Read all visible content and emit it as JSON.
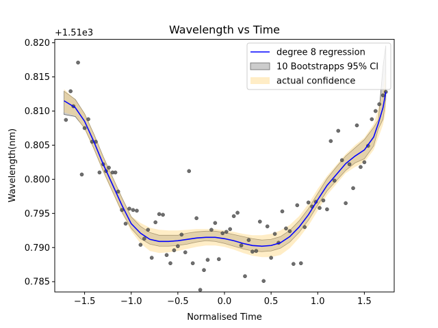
{
  "chart_data": {
    "type": "scatter",
    "title": "Wavelength vs Time",
    "xlabel": "Normalised Time",
    "ylabel": "Wavelength(nm)",
    "offset_text": "+1.51e3",
    "xlim": [
      -1.82,
      1.82
    ],
    "ylim": [
      0.7835,
      0.8205
    ],
    "x_ticks": [
      -1.5,
      -1.0,
      -0.5,
      0.0,
      0.5,
      1.0,
      1.5
    ],
    "x_tick_labels": [
      "−1.5",
      "−1.0",
      "−0.5",
      "0.0",
      "0.5",
      "1.0",
      "1.5"
    ],
    "y_ticks": [
      0.785,
      0.79,
      0.795,
      0.8,
      0.805,
      0.81,
      0.815,
      0.82
    ],
    "y_tick_labels": [
      "0.785",
      "0.790",
      "0.795",
      "0.800",
      "0.805",
      "0.810",
      "0.815",
      "0.820"
    ],
    "grid": false,
    "legend_position": "top-right",
    "colors": {
      "points": "#555555",
      "regression": "#0000ff",
      "bootstrap_fill": "#999999",
      "bootstrap_edge": "#666666",
      "confidence_fill": "#ffd780"
    },
    "series": [
      {
        "name": "degree 8 regression",
        "kind": "line",
        "x": [
          -1.72,
          -1.6,
          -1.5,
          -1.4,
          -1.3,
          -1.2,
          -1.1,
          -1.0,
          -0.9,
          -0.8,
          -0.7,
          -0.6,
          -0.5,
          -0.4,
          -0.3,
          -0.2,
          -0.1,
          0.0,
          0.1,
          0.2,
          0.3,
          0.4,
          0.5,
          0.6,
          0.7,
          0.8,
          0.9,
          1.0,
          1.1,
          1.2,
          1.3,
          1.4,
          1.5,
          1.6,
          1.65,
          1.7,
          1.73
        ],
        "y": [
          0.8115,
          0.8105,
          0.8085,
          0.8055,
          0.8022,
          0.7992,
          0.7962,
          0.7935,
          0.7921,
          0.7912,
          0.7909,
          0.7909,
          0.791,
          0.7912,
          0.7914,
          0.7915,
          0.7915,
          0.7913,
          0.791,
          0.7906,
          0.7903,
          0.7902,
          0.7903,
          0.7907,
          0.7916,
          0.793,
          0.7948,
          0.797,
          0.7991,
          0.8007,
          0.8023,
          0.8034,
          0.8043,
          0.8062,
          0.8082,
          0.8105,
          0.8128
        ]
      },
      {
        "name": "10 Bootstrapps 95% CI",
        "kind": "band",
        "x": [
          -1.72,
          -1.6,
          -1.5,
          -1.4,
          -1.3,
          -1.2,
          -1.1,
          -1.0,
          -0.9,
          -0.8,
          -0.7,
          -0.6,
          -0.5,
          -0.4,
          -0.3,
          -0.2,
          -0.1,
          0.0,
          0.1,
          0.2,
          0.3,
          0.4,
          0.5,
          0.6,
          0.7,
          0.8,
          0.9,
          1.0,
          1.1,
          1.2,
          1.3,
          1.4,
          1.5,
          1.6,
          1.65,
          1.7,
          1.73
        ],
        "lower": [
          0.8095,
          0.8092,
          0.8075,
          0.8045,
          0.8012,
          0.7982,
          0.7952,
          0.7928,
          0.7913,
          0.7905,
          0.7902,
          0.7902,
          0.7903,
          0.7905,
          0.7908,
          0.791,
          0.7909,
          0.7906,
          0.7902,
          0.7898,
          0.7895,
          0.7894,
          0.7895,
          0.7899,
          0.7908,
          0.7922,
          0.794,
          0.7962,
          0.7983,
          0.7998,
          0.8013,
          0.8024,
          0.803,
          0.8049,
          0.8074,
          0.8088,
          0.8117
        ],
        "upper": [
          0.8129,
          0.8117,
          0.8096,
          0.8066,
          0.8033,
          0.8003,
          0.7973,
          0.7945,
          0.7931,
          0.7922,
          0.7918,
          0.7918,
          0.7918,
          0.7921,
          0.7923,
          0.7924,
          0.7924,
          0.7922,
          0.7919,
          0.7916,
          0.7913,
          0.7911,
          0.7912,
          0.7916,
          0.7925,
          0.7939,
          0.7957,
          0.7979,
          0.8001,
          0.8018,
          0.8034,
          0.8046,
          0.8058,
          0.8076,
          0.8087,
          0.8165,
          0.8196
        ]
      },
      {
        "name": "actual confidence",
        "kind": "band",
        "x": [
          -1.72,
          -1.6,
          -1.5,
          -1.4,
          -1.3,
          -1.2,
          -1.1,
          -1.0,
          -0.9,
          -0.8,
          -0.7,
          -0.6,
          -0.5,
          -0.4,
          -0.3,
          -0.2,
          -0.1,
          0.0,
          0.1,
          0.2,
          0.3,
          0.4,
          0.5,
          0.6,
          0.7,
          0.8,
          0.9,
          1.0,
          1.1,
          1.2,
          1.3,
          1.4,
          1.5,
          1.6,
          1.65,
          1.7,
          1.73
        ],
        "lower": [
          0.8098,
          0.8093,
          0.8073,
          0.8043,
          0.801,
          0.798,
          0.795,
          0.7924,
          0.7906,
          0.7895,
          0.7892,
          0.7893,
          0.7895,
          0.7898,
          0.7901,
          0.7903,
          0.7903,
          0.7901,
          0.7897,
          0.7892,
          0.7888,
          0.7886,
          0.7886,
          0.7889,
          0.7899,
          0.7914,
          0.7932,
          0.7954,
          0.7977,
          0.7993,
          0.8009,
          0.8018,
          0.8025,
          0.8043,
          0.8061,
          0.808,
          0.81
        ],
        "upper": [
          0.8132,
          0.8117,
          0.8097,
          0.8067,
          0.8034,
          0.8004,
          0.7974,
          0.7946,
          0.7936,
          0.7929,
          0.7926,
          0.7925,
          0.7925,
          0.7926,
          0.7927,
          0.7927,
          0.7927,
          0.7925,
          0.7923,
          0.792,
          0.7918,
          0.7918,
          0.792,
          0.7925,
          0.7933,
          0.7946,
          0.7964,
          0.7986,
          0.8005,
          0.8021,
          0.8037,
          0.805,
          0.8061,
          0.8081,
          0.8103,
          0.813,
          0.8156
        ]
      },
      {
        "name": "data",
        "kind": "scatter",
        "x": [
          -1.7,
          -1.65,
          -1.62,
          -1.57,
          -1.53,
          -1.5,
          -1.46,
          -1.42,
          -1.38,
          -1.34,
          -1.3,
          -1.27,
          -1.24,
          -1.2,
          -1.17,
          -1.14,
          -1.1,
          -1.06,
          -1.02,
          -0.98,
          -0.94,
          -0.9,
          -0.86,
          -0.82,
          -0.78,
          -0.74,
          -0.7,
          -0.66,
          -0.62,
          -0.58,
          -0.54,
          -0.5,
          -0.46,
          -0.42,
          -0.38,
          -0.34,
          -0.3,
          -0.26,
          -0.22,
          -0.18,
          -0.14,
          -0.1,
          -0.06,
          -0.02,
          0.02,
          0.06,
          0.1,
          0.14,
          0.18,
          0.22,
          0.26,
          0.3,
          0.34,
          0.38,
          0.42,
          0.46,
          0.5,
          0.54,
          0.58,
          0.62,
          0.66,
          0.7,
          0.74,
          0.78,
          0.82,
          0.86,
          0.9,
          0.94,
          0.98,
          1.02,
          1.06,
          1.1,
          1.14,
          1.18,
          1.22,
          1.26,
          1.3,
          1.34,
          1.38,
          1.42,
          1.46,
          1.5,
          1.54,
          1.58,
          1.62,
          1.66,
          1.7,
          1.73
        ],
        "y": [
          0.8087,
          0.8129,
          0.8107,
          0.8171,
          0.8007,
          0.8075,
          0.8088,
          0.8055,
          0.8055,
          0.801,
          0.8022,
          0.8012,
          0.8017,
          0.801,
          0.801,
          0.7982,
          0.7955,
          0.7935,
          0.7957,
          0.7955,
          0.7954,
          0.7904,
          0.7913,
          0.7926,
          0.7885,
          0.7937,
          0.7949,
          0.7948,
          0.7889,
          0.7877,
          0.7896,
          0.7902,
          0.7919,
          0.7893,
          0.8012,
          0.7877,
          0.7943,
          0.7838,
          0.7867,
          0.7882,
          0.7926,
          0.7936,
          0.7883,
          0.7921,
          0.7923,
          0.7927,
          0.7946,
          0.7951,
          0.7903,
          0.7858,
          0.7911,
          0.7894,
          0.7895,
          0.7938,
          0.7851,
          0.7931,
          0.7885,
          0.792,
          0.7907,
          0.7953,
          0.7928,
          0.7924,
          0.7876,
          0.7962,
          0.7877,
          0.793,
          0.7966,
          0.796,
          0.7967,
          0.7958,
          0.7969,
          0.7956,
          0.8056,
          0.7998,
          0.8071,
          0.8028,
          0.7965,
          0.8022,
          0.7987,
          0.8079,
          0.8018,
          0.8025,
          0.8049,
          0.8088,
          0.81,
          0.811,
          0.8123,
          0.8128
        ]
      }
    ],
    "legend": [
      {
        "label": "degree 8 regression",
        "kind": "line"
      },
      {
        "label": "10 Bootstrapps 95% CI",
        "kind": "band-gray"
      },
      {
        "label": "actual confidence",
        "kind": "band-yellow"
      }
    ]
  }
}
